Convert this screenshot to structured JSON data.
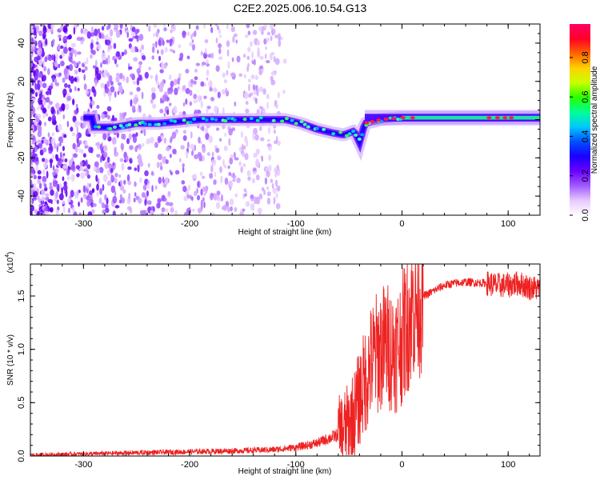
{
  "title": "C2E2.2025.006.10.54.G13",
  "chart_data": [
    {
      "type": "heatmap",
      "xlabel": "Height of straight line (km)",
      "ylabel": "Frequency (Hz)",
      "xlim": [
        -350,
        130
      ],
      "ylim": [
        -50,
        50
      ],
      "xticks": [
        -300,
        -200,
        -100,
        0,
        100
      ],
      "yticks": [
        -40,
        -20,
        0,
        20,
        40
      ],
      "colorbar": {
        "label": "Normalized spectral amplitude",
        "ticks": [
          "0.0",
          "0.2",
          "0.4",
          "0.6",
          "0.8"
        ],
        "tick_values": [
          0.0,
          0.2,
          0.4,
          0.6,
          0.8
        ],
        "range": [
          0,
          0.97
        ],
        "colormap": [
          "#ffffff",
          "#e8c8ff",
          "#a05aff",
          "#6a00ff",
          "#1a00ff",
          "#0050ff",
          "#00c8ff",
          "#00ff96",
          "#28ff00",
          "#c8ff00",
          "#ffd200",
          "#ff6400",
          "#ff0028",
          "#ff0064"
        ]
      },
      "ridge": [
        {
          "x": -290,
          "y": -4
        },
        {
          "x": -270,
          "y": -4
        },
        {
          "x": -250,
          "y": -2
        },
        {
          "x": -230,
          "y": -2
        },
        {
          "x": -210,
          "y": -1
        },
        {
          "x": -190,
          "y": 0
        },
        {
          "x": -170,
          "y": 0
        },
        {
          "x": -150,
          "y": 0
        },
        {
          "x": -130,
          "y": 0
        },
        {
          "x": -110,
          "y": 0
        },
        {
          "x": -95,
          "y": -2
        },
        {
          "x": -80,
          "y": -5
        },
        {
          "x": -65,
          "y": -7
        },
        {
          "x": -55,
          "y": -8
        },
        {
          "x": -45,
          "y": -6
        },
        {
          "x": -40,
          "y": -12
        },
        {
          "x": -35,
          "y": -2
        },
        {
          "x": -20,
          "y": 0
        },
        {
          "x": 0,
          "y": 1
        },
        {
          "x": 20,
          "y": 1
        },
        {
          "x": 60,
          "y": 1
        },
        {
          "x": 100,
          "y": 1
        },
        {
          "x": 130,
          "y": 1
        }
      ]
    },
    {
      "type": "line",
      "xlabel": "Height of straight line (km)",
      "ylabel": "SNR (10 * v/v)",
      "scale_label": "(x10",
      "scale_exp": "4",
      "scale_suffix": ")",
      "xlim": [
        -350,
        130
      ],
      "ylim": [
        0,
        1.8
      ],
      "xticks": [
        -300,
        -200,
        -100,
        0,
        100
      ],
      "yticks": [
        "0.0",
        "0.5",
        "1.0",
        "1.5"
      ],
      "ytick_values": [
        0,
        0.5,
        1.0,
        1.5
      ],
      "color": "#ee2222",
      "series": [
        {
          "x": [
            -350,
            -300,
            -250,
            -200,
            -150,
            -120,
            -100,
            -80,
            -60,
            -50,
            -45,
            -40,
            -35,
            -30,
            -25,
            -20,
            -15,
            -10,
            -5,
            0,
            5,
            10,
            15,
            20,
            25,
            30,
            40,
            50,
            60,
            80,
            90,
            100,
            110,
            120,
            130
          ],
          "y": [
            0.01,
            0.02,
            0.03,
            0.04,
            0.05,
            0.06,
            0.08,
            0.12,
            0.2,
            0.3,
            0.4,
            0.55,
            0.7,
            0.85,
            0.95,
            1.0,
            1.05,
            1.0,
            1.0,
            1.1,
            1.25,
            1.4,
            1.45,
            1.5,
            1.52,
            1.55,
            1.6,
            1.62,
            1.63,
            1.62,
            1.6,
            1.6,
            1.62,
            1.58,
            1.57
          ]
        }
      ]
    }
  ]
}
